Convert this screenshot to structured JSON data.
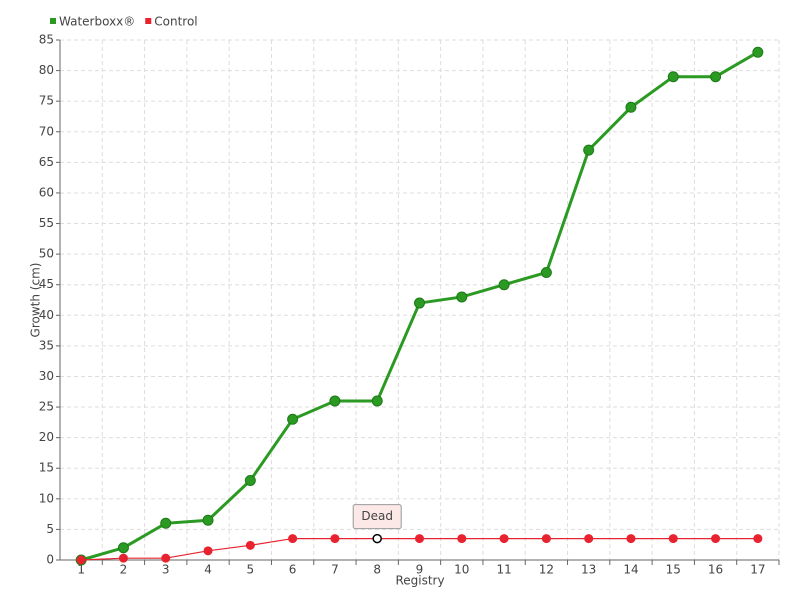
{
  "chart_data": {
    "type": "line",
    "ylabel": "Growth (cm)",
    "xlabel": "Registry",
    "categories": [
      "1",
      "2",
      "3",
      "4",
      "5",
      "6",
      "7",
      "8",
      "9",
      "10",
      "11",
      "12",
      "13",
      "14",
      "15",
      "16",
      "17"
    ],
    "series": [
      {
        "name": "Waterboxx®",
        "color": "#2a9a22",
        "values": [
          0,
          2,
          6,
          6.5,
          13,
          23,
          26,
          26,
          42,
          43,
          45,
          47,
          67,
          74,
          79,
          79,
          83
        ]
      },
      {
        "name": "Control",
        "color": "#e8232f",
        "values": [
          0,
          0.3,
          0.3,
          1.5,
          2.4,
          3.5,
          3.5,
          3.5,
          3.5,
          3.5,
          3.5,
          3.5,
          3.5,
          3.5,
          3.5,
          3.5,
          3.5
        ]
      }
    ],
    "ylim": [
      0,
      85
    ],
    "yticks": [
      0,
      5,
      10,
      15,
      20,
      25,
      30,
      35,
      40,
      45,
      50,
      55,
      60,
      65,
      70,
      75,
      80,
      85
    ],
    "grid": true,
    "legend": "top-left",
    "annotations": [
      {
        "text": "Dead",
        "x": "8"
      }
    ]
  }
}
